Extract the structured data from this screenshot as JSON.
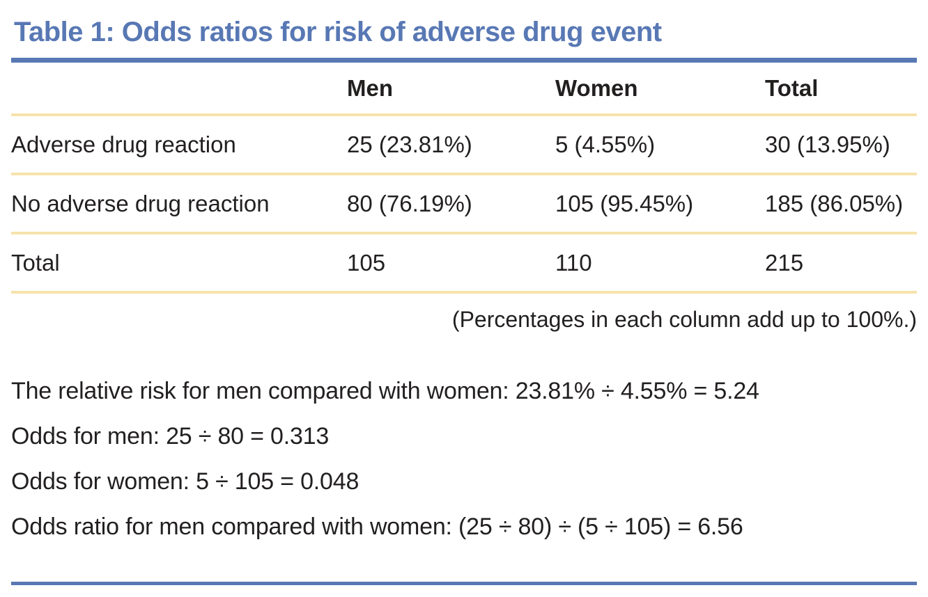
{
  "page": {
    "title": "Table 1: Odds ratios for risk of adverse drug event"
  },
  "table": {
    "columns": {
      "label": "",
      "men": "Men",
      "women": "Women",
      "total": "Total"
    },
    "rows": [
      {
        "label": "Adverse drug reaction",
        "men": "25 (23.81%)",
        "women": "5 (4.55%)",
        "total": "30 (13.95%)"
      },
      {
        "label": "No adverse drug reaction",
        "men": "80 (76.19%)",
        "women": "105 (95.45%)",
        "total": "185 (86.05%)"
      },
      {
        "label": "Total",
        "men": "105",
        "women": "110",
        "total": "215"
      }
    ],
    "note": "(Percentages in each column add up to 100%.)"
  },
  "calculations": {
    "relative_risk": "The relative risk for men compared with women: 23.81% ÷ 4.55% = 5.24",
    "odds_men": "Odds for men: 25 ÷ 80 = 0.313",
    "odds_women": "Odds for women: 5 ÷ 105 = 0.048",
    "odds_ratio": "Odds ratio for men compared with women: (25 ÷ 80) ÷ (5 ÷ 105) = 6.56"
  },
  "colors": {
    "accent_blue": "#5878b4",
    "rule_yellow": "#f6e3ac",
    "text": "#221f1f"
  },
  "chart_data": {
    "type": "table",
    "title": "Table 1: Odds ratios for risk of adverse drug event",
    "columns": [
      "",
      "Men",
      "Women",
      "Total"
    ],
    "rows": [
      [
        "Adverse drug reaction",
        "25 (23.81%)",
        "5 (4.55%)",
        "30 (13.95%)"
      ],
      [
        "No adverse drug reaction",
        "80 (76.19%)",
        "105 (95.45%)",
        "185 (86.05%)"
      ],
      [
        "Total",
        "105",
        "110",
        "215"
      ]
    ],
    "note": "(Percentages in each column add up to 100%.)",
    "derived_values": {
      "relative_risk_men_vs_women": 5.24,
      "odds_men": 0.313,
      "odds_women": 0.048,
      "odds_ratio_men_vs_women": 6.56
    }
  }
}
